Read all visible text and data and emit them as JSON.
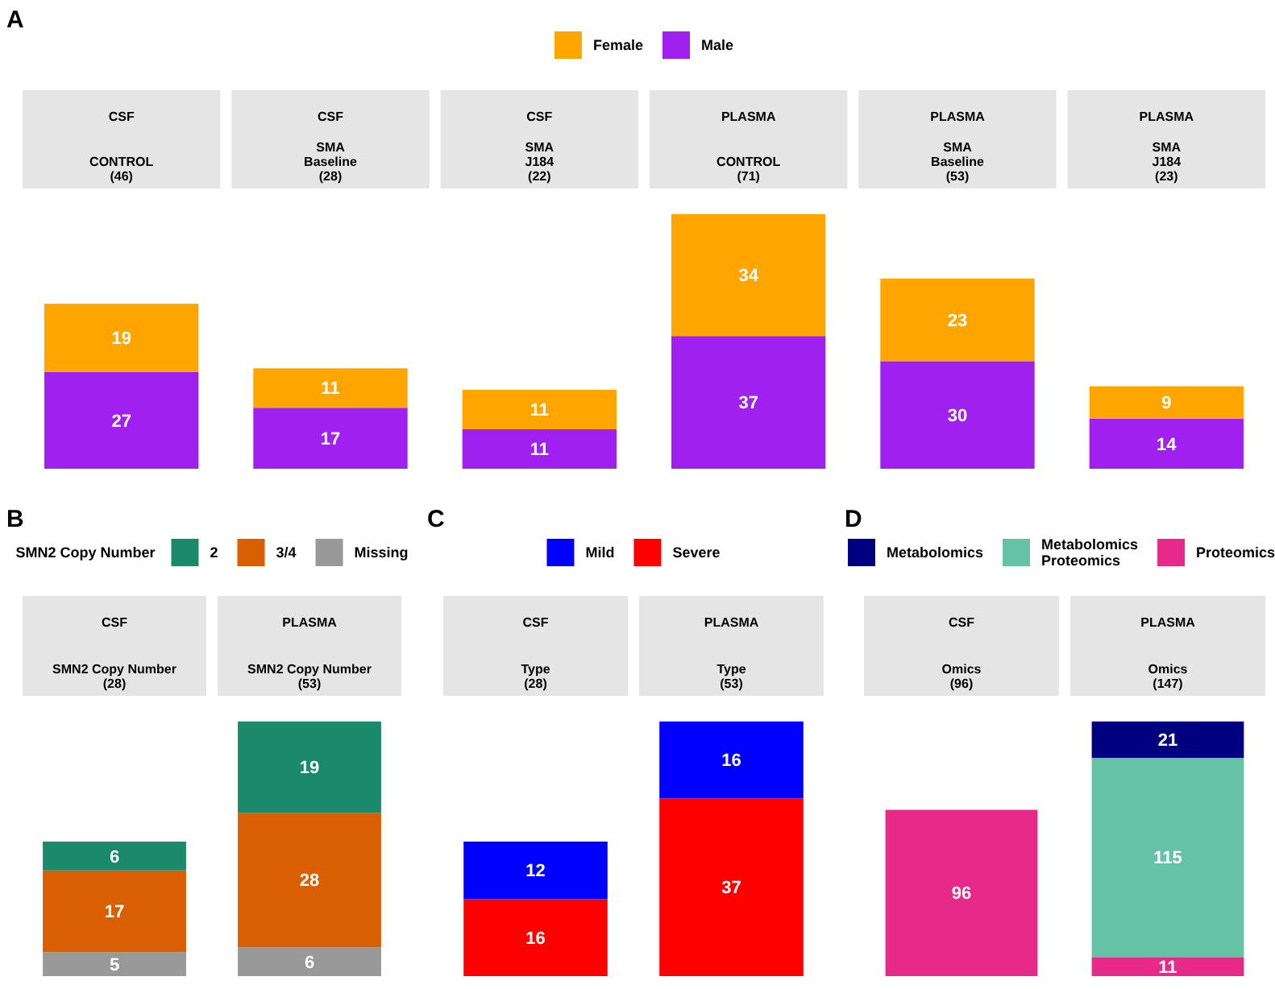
{
  "chart_data": [
    {
      "type": "bar",
      "title": "A",
      "stacked": true,
      "legend": "top",
      "data_labels": true,
      "tick_labels": false,
      "categories": [
        "CSF\nCONTROL\n(46)",
        "CSF\nSMA\nBaseline\n(28)",
        "CSF\nSMA\nJ184\n(22)",
        "PLASMA\nCONTROL\n(71)",
        "PLASMA\nSMA\nBaseline\n(53)",
        "PLASMA\nSMA\nJ184\n(23)"
      ],
      "series": [
        {
          "name": "Male",
          "color": "#a020f0",
          "values": [
            27,
            17,
            11,
            37,
            30,
            14
          ]
        },
        {
          "name": "Female",
          "color": "#ffa500",
          "values": [
            19,
            11,
            11,
            34,
            23,
            9
          ]
        }
      ]
    },
    {
      "type": "bar",
      "title": "B",
      "stacked": true,
      "legend": "top",
      "legend_title": "SMN2 Copy Number",
      "data_labels": true,
      "tick_labels": false,
      "categories": [
        "CSF\nSMN2 Copy Number\n(28)",
        "PLASMA\nSMN2 Copy Number\n(53)"
      ],
      "series": [
        {
          "name": "Missing",
          "color": "#999999",
          "values": [
            5,
            6
          ]
        },
        {
          "name": "3/4",
          "color": "#d95f02",
          "values": [
            17,
            28
          ]
        },
        {
          "name": "2",
          "color": "#1b8a6b",
          "values": [
            6,
            19
          ]
        }
      ]
    },
    {
      "type": "bar",
      "title": "C",
      "stacked": true,
      "legend": "top",
      "data_labels": true,
      "tick_labels": false,
      "categories": [
        "CSF\nType\n(28)",
        "PLASMA\nType\n(53)"
      ],
      "series": [
        {
          "name": "Severe",
          "color": "#ff0000",
          "values": [
            16,
            37
          ]
        },
        {
          "name": "Mild",
          "color": "#0000ff",
          "values": [
            12,
            16
          ]
        }
      ]
    },
    {
      "type": "bar",
      "title": "D",
      "stacked": true,
      "legend": "top",
      "data_labels": true,
      "tick_labels": false,
      "categories": [
        "CSF\nOmics\n(96)",
        "PLASMA\nOmics\n(147)"
      ],
      "series": [
        {
          "name": "Proteomics",
          "color": "#e7298a",
          "values": [
            96,
            11
          ]
        },
        {
          "name": "Metabolomics\nProteomics",
          "color": "#66c2a5",
          "values": [
            null,
            115
          ]
        },
        {
          "name": "Metabolomics",
          "color": "#000080",
          "values": [
            null,
            21
          ]
        }
      ]
    }
  ]
}
